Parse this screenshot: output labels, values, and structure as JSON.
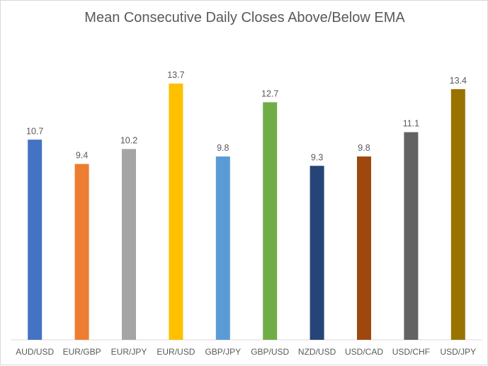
{
  "chart_data": {
    "type": "bar",
    "title": "Mean Consecutive Daily Closes Above/Below EMA",
    "xlabel": "",
    "ylabel": "",
    "categories": [
      "AUD/USD",
      "EUR/GBP",
      "EUR/JPY",
      "EUR/USD",
      "GBP/JPY",
      "GBP/USD",
      "NZD/USD",
      "USD/CAD",
      "USD/CHF",
      "USD/JPY"
    ],
    "values": [
      10.7,
      9.4,
      10.2,
      13.7,
      9.8,
      12.7,
      9.3,
      9.8,
      11.1,
      13.4
    ],
    "data_labels": [
      "10.7",
      "9.4",
      "10.2",
      "13.7",
      "9.8",
      "12.7",
      "9.3",
      "9.8",
      "11.1",
      "13.4"
    ],
    "colors": [
      "#4472C4",
      "#ED7D31",
      "#A5A5A5",
      "#FFC000",
      "#5B9BD5",
      "#70AD47",
      "#264478",
      "#9E480E",
      "#636363",
      "#997300"
    ],
    "ylim": [
      0,
      15
    ],
    "grid": false,
    "legend": "none",
    "axis_color": "#D9D9D9"
  }
}
